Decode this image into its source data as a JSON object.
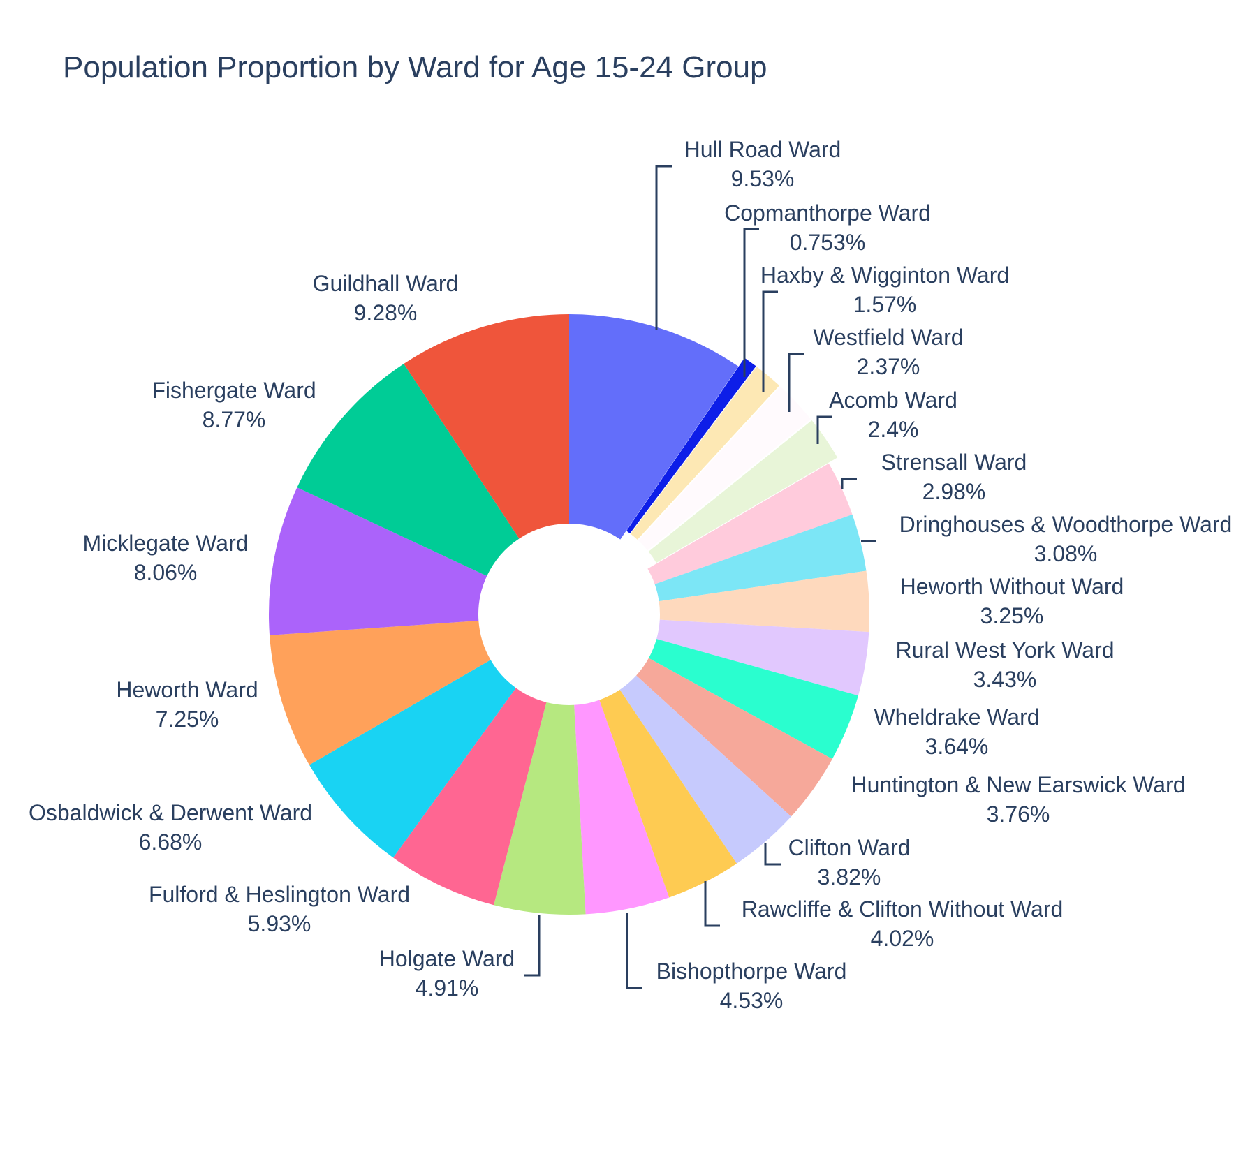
{
  "chart_data": {
    "type": "pie",
    "hole": true,
    "title": "Population Proportion by Ward for Age 15-24 Group",
    "legend": "none",
    "slices": [
      {
        "label": "Hull Road Ward",
        "value": 9.53,
        "value_text": "9.53%",
        "color": "#636efa",
        "pull": 0
      },
      {
        "label": "Copmanthorpe Ward",
        "value": 0.753,
        "value_text": "0.753%",
        "color": "#0d1ee8",
        "pull": 0.035
      },
      {
        "label": "Haxby & Wigginton Ward",
        "value": 1.57,
        "value_text": "1.57%",
        "color": "#fde8b4",
        "pull": 0.035
      },
      {
        "label": "Westfield Ward",
        "value": 2.37,
        "value_text": "2.37%",
        "color": "#fffafd",
        "pull": 0.035
      },
      {
        "label": "Acomb Ward",
        "value": 2.4,
        "value_text": "2.4%",
        "color": "#e8f5d8",
        "pull": 0.035
      },
      {
        "label": "Strensall Ward",
        "value": 2.98,
        "value_text": "2.98%",
        "color": "#ffcbdc",
        "pull": 0
      },
      {
        "label": "Dringhouses & Woodthorpe Ward",
        "value": 3.08,
        "value_text": "3.08%",
        "color": "#7ce6f6",
        "pull": 0
      },
      {
        "label": "Heworth Without Ward",
        "value": 3.25,
        "value_text": "3.25%",
        "color": "#fed9bd",
        "pull": 0
      },
      {
        "label": "Rural West York Ward",
        "value": 3.43,
        "value_text": "3.43%",
        "color": "#e1c8fe",
        "pull": 0
      },
      {
        "label": "Wheldrake Ward",
        "value": 3.64,
        "value_text": "3.64%",
        "color": "#2afecf",
        "pull": 0
      },
      {
        "label": "Huntington & New Earswick Ward",
        "value": 3.76,
        "value_text": "3.76%",
        "color": "#f6a89a",
        "pull": 0
      },
      {
        "label": "Clifton Ward",
        "value": 3.82,
        "value_text": "3.82%",
        "color": "#c6cafd",
        "pull": 0
      },
      {
        "label": "Rawcliffe & Clifton Without Ward",
        "value": 4.02,
        "value_text": "4.02%",
        "color": "#fecb52",
        "pull": 0
      },
      {
        "label": "Bishopthorpe Ward",
        "value": 4.53,
        "value_text": "4.53%",
        "color": "#ff97ff",
        "pull": 0
      },
      {
        "label": "Holgate Ward",
        "value": 4.91,
        "value_text": "4.91%",
        "color": "#b6e880",
        "pull": 0
      },
      {
        "label": "Fulford & Heslington Ward",
        "value": 5.93,
        "value_text": "5.93%",
        "color": "#ff6692",
        "pull": 0
      },
      {
        "label": "Osbaldwick & Derwent Ward",
        "value": 6.68,
        "value_text": "6.68%",
        "color": "#19d3f3",
        "pull": 0
      },
      {
        "label": "Heworth Ward",
        "value": 7.25,
        "value_text": "7.25%",
        "color": "#ffa15a",
        "pull": 0
      },
      {
        "label": "Micklegate Ward",
        "value": 8.06,
        "value_text": "8.06%",
        "color": "#ab63fa",
        "pull": 0
      },
      {
        "label": "Fishergate Ward",
        "value": 8.77,
        "value_text": "8.77%",
        "color": "#00cc96",
        "pull": 0
      },
      {
        "label": "Guildhall Ward",
        "value": 9.28,
        "value_text": "9.28%",
        "color": "#ef553b",
        "pull": 0
      }
    ]
  }
}
